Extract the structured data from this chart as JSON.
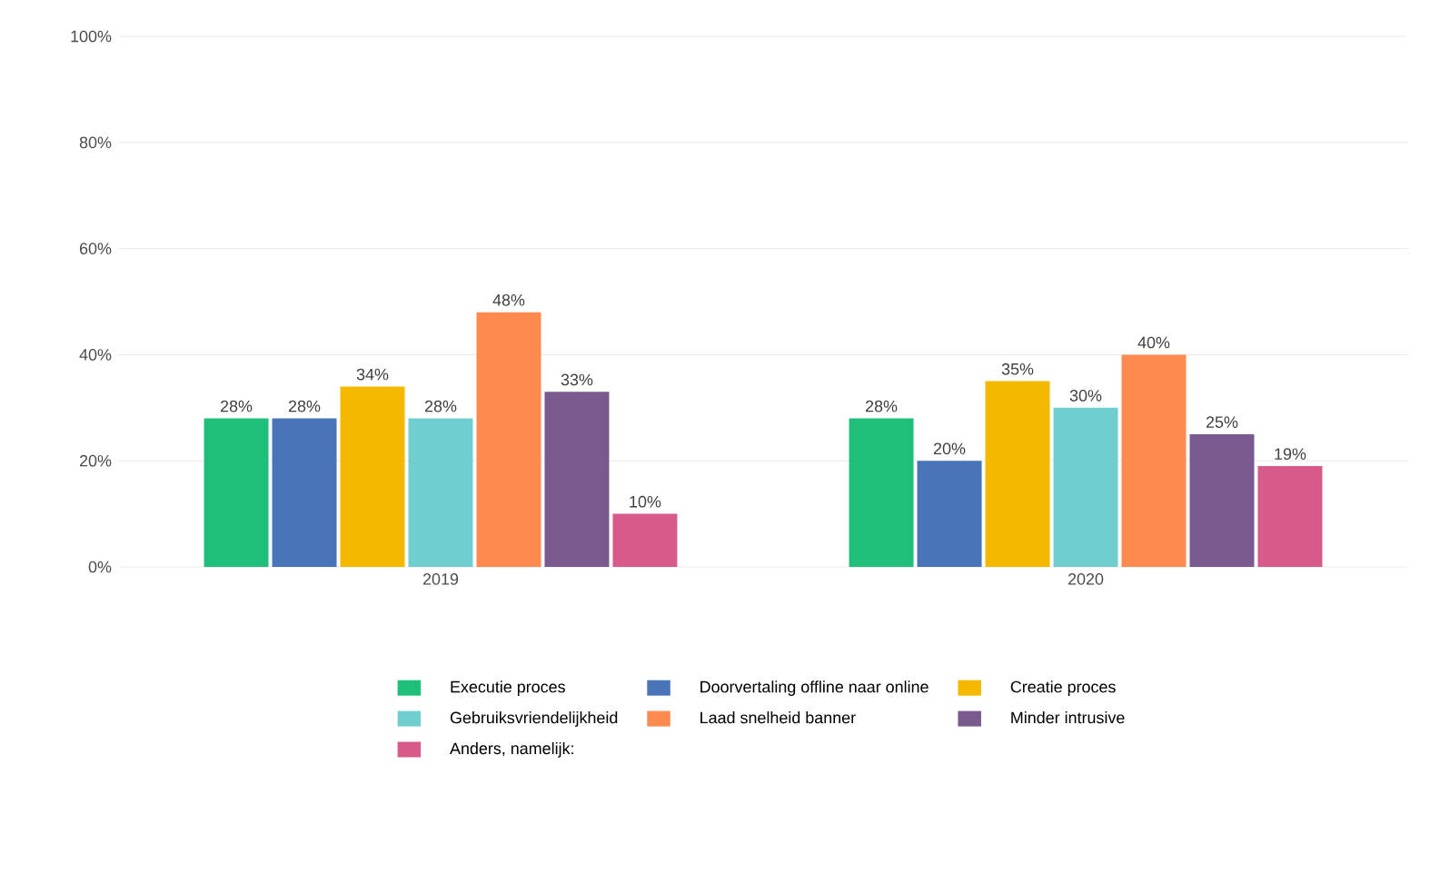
{
  "chart_data": {
    "type": "bar",
    "categories": [
      "2019",
      "2020"
    ],
    "series": [
      {
        "name": "Executie proces",
        "color": "#1fbf7a",
        "values": [
          28,
          28
        ],
        "value_labels": [
          "28%",
          "28%"
        ]
      },
      {
        "name": "Doorvertaling offline naar online",
        "color": "#4a74b8",
        "values": [
          28,
          20
        ],
        "value_labels": [
          "28%",
          "20%"
        ]
      },
      {
        "name": "Creatie proces",
        "color": "#f5b800",
        "values": [
          34,
          35
        ],
        "value_labels": [
          "34%",
          "35%"
        ]
      },
      {
        "name": "Gebruiksvriendelijkheid",
        "color": "#6fcfcf",
        "values": [
          28,
          30
        ],
        "value_labels": [
          "28%",
          "30%"
        ]
      },
      {
        "name": "Laad snelheid banner",
        "color": "#ff8a50",
        "values": [
          48,
          40
        ],
        "value_labels": [
          "48%",
          "40%"
        ]
      },
      {
        "name": "Minder intrusive",
        "color": "#7a5a8e",
        "values": [
          33,
          25
        ],
        "value_labels": [
          "33%",
          "25%"
        ]
      },
      {
        "name": "Anders, namelijk:",
        "color": "#d85a8a",
        "values": [
          10,
          19
        ],
        "value_labels": [
          "10%",
          "19%"
        ]
      }
    ],
    "ylim": [
      0,
      100
    ],
    "yticks": [
      {
        "value": 0,
        "label": "0%"
      },
      {
        "value": 20,
        "label": "20%"
      },
      {
        "value": 40,
        "label": "40%"
      },
      {
        "value": 60,
        "label": "60%"
      },
      {
        "value": 80,
        "label": "80%"
      },
      {
        "value": 100,
        "label": "100%"
      }
    ],
    "grid": "y",
    "legend": "bottom"
  }
}
